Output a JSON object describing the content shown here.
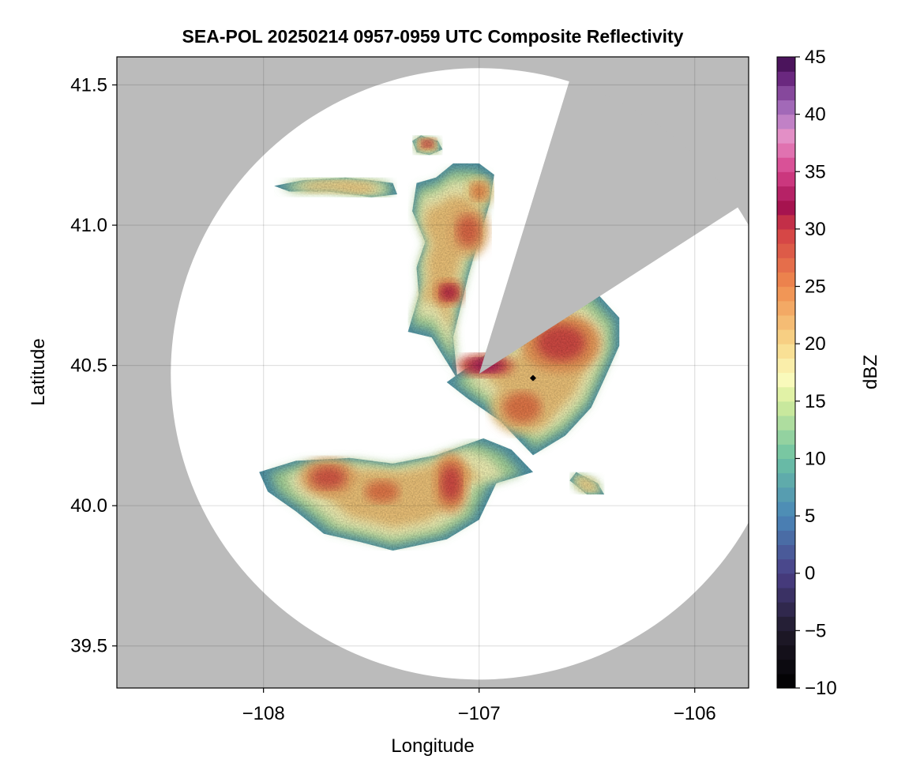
{
  "chart_data": {
    "type": "heatmap",
    "title": "SEA-POL 20250214 0957-0959 UTC Composite Reflectivity",
    "xlabel": "Longitude",
    "ylabel": "Latitude",
    "xlim": [
      -108.68,
      -105.75
    ],
    "ylim": [
      39.35,
      41.6
    ],
    "xticks": [
      -108,
      -107,
      -106
    ],
    "xtick_labels": [
      "−108",
      "−107",
      "−106"
    ],
    "yticks": [
      39.5,
      40.0,
      40.5,
      41.0,
      41.5
    ],
    "ytick_labels": [
      "39.5",
      "40.0",
      "40.5",
      "41.0",
      "41.5"
    ],
    "grid": true,
    "background_color": "#bbbbbb",
    "radar_coverage": {
      "center": [
        -107.0,
        40.47
      ],
      "range_lat_deg": 1.09,
      "range_lon_deg": 1.43,
      "blocked_sectors_deg_from_north": [
        [
          17,
          57
        ]
      ],
      "coverage_color": "#ffffff"
    },
    "instrument_location": [
      -106.75,
      40.455
    ],
    "colorbar": {
      "label": "dBZ",
      "min": -10,
      "max": 45,
      "step": 1.25,
      "ticks": [
        -10,
        -5,
        0,
        5,
        10,
        15,
        20,
        25,
        30,
        35,
        40,
        45
      ],
      "tick_labels": [
        "−10",
        "−5",
        "0",
        "5",
        "10",
        "15",
        "20",
        "25",
        "30",
        "35",
        "40",
        "45"
      ],
      "colormap": "spectral-reversed with pink-purple top",
      "stops": [
        [
          -10,
          "#000000"
        ],
        [
          -5,
          "#201a2a"
        ],
        [
          0,
          "#4a3f86"
        ],
        [
          5,
          "#4a87b8"
        ],
        [
          10,
          "#6cc1a3"
        ],
        [
          15,
          "#d5ee9c"
        ],
        [
          17,
          "#fbfbbd"
        ],
        [
          20,
          "#f8d98a"
        ],
        [
          25,
          "#f08c4e"
        ],
        [
          30,
          "#d23d45"
        ],
        [
          32,
          "#a31050"
        ],
        [
          35,
          "#d6418a"
        ],
        [
          38,
          "#e690c6"
        ],
        [
          40,
          "#b07ac6"
        ],
        [
          43,
          "#6d2a82"
        ],
        [
          45,
          "#3b0a4a"
        ]
      ]
    },
    "echo_regions": [
      {
        "name": "northern band",
        "shape": [
          [
            -107.33,
            40.62
          ],
          [
            -107.22,
            40.6
          ],
          [
            -107.1,
            40.45
          ],
          [
            -107.12,
            40.6
          ],
          [
            -107.05,
            40.82
          ],
          [
            -106.95,
            41.08
          ],
          [
            -106.93,
            41.18
          ],
          [
            -107.0,
            41.22
          ],
          [
            -107.12,
            41.22
          ],
          [
            -107.2,
            41.17
          ],
          [
            -107.29,
            41.15
          ],
          [
            -107.31,
            41.05
          ],
          [
            -107.25,
            40.94
          ],
          [
            -107.29,
            40.85
          ],
          [
            -107.28,
            40.75
          ]
        ],
        "cores": [
          {
            "center": [
              -107.14,
              40.76
            ],
            "radius": [
              0.05,
              0.035
            ],
            "dbz": 31
          },
          {
            "center": [
              -107.05,
              40.98
            ],
            "radius": [
              0.07,
              0.07
            ],
            "dbz": 27
          },
          {
            "center": [
              -107.0,
              41.12
            ],
            "radius": [
              0.05,
              0.04
            ],
            "dbz": 25
          }
        ]
      },
      {
        "name": "isolated cell north",
        "shape": [
          [
            -107.31,
            41.3
          ],
          [
            -107.27,
            41.32
          ],
          [
            -107.19,
            41.3
          ],
          [
            -107.17,
            41.27
          ],
          [
            -107.23,
            41.25
          ],
          [
            -107.29,
            41.26
          ]
        ],
        "cores": [
          {
            "center": [
              -107.24,
              41.29
            ],
            "radius": [
              0.03,
              0.015
            ],
            "dbz": 31
          }
        ]
      },
      {
        "name": "northwest patch",
        "shape": [
          [
            -107.95,
            41.14
          ],
          [
            -107.82,
            41.16
          ],
          [
            -107.62,
            41.17
          ],
          [
            -107.5,
            41.16
          ],
          [
            -107.4,
            41.15
          ],
          [
            -107.38,
            41.11
          ],
          [
            -107.5,
            41.1
          ],
          [
            -107.7,
            41.12
          ],
          [
            -107.88,
            41.12
          ]
        ],
        "cores": []
      },
      {
        "name": "main eastern cell",
        "shape": [
          [
            -107.15,
            40.44
          ],
          [
            -106.95,
            40.55
          ],
          [
            -106.78,
            40.64
          ],
          [
            -106.6,
            40.73
          ],
          [
            -106.48,
            40.78
          ],
          [
            -106.35,
            40.67
          ],
          [
            -106.35,
            40.57
          ],
          [
            -106.42,
            40.45
          ],
          [
            -106.48,
            40.35
          ],
          [
            -106.6,
            40.25
          ],
          [
            -106.75,
            40.18
          ],
          [
            -106.9,
            40.3
          ],
          [
            -107.05,
            40.38
          ]
        ],
        "cores": [
          {
            "center": [
              -106.62,
              40.58
            ],
            "radius": [
              0.14,
              0.08
            ],
            "dbz": 29
          },
          {
            "center": [
              -106.97,
              40.5
            ],
            "radius": [
              0.1,
              0.03
            ],
            "dbz": 33
          },
          {
            "center": [
              -106.8,
              40.35
            ],
            "radius": [
              0.11,
              0.07
            ],
            "dbz": 26
          }
        ]
      },
      {
        "name": "southwestern band",
        "shape": [
          [
            -108.02,
            40.12
          ],
          [
            -107.85,
            40.16
          ],
          [
            -107.6,
            40.17
          ],
          [
            -107.4,
            40.15
          ],
          [
            -107.2,
            40.18
          ],
          [
            -106.98,
            40.24
          ],
          [
            -106.85,
            40.2
          ],
          [
            -106.75,
            40.12
          ],
          [
            -106.92,
            40.08
          ],
          [
            -107.0,
            39.95
          ],
          [
            -107.15,
            39.88
          ],
          [
            -107.4,
            39.84
          ],
          [
            -107.55,
            39.87
          ],
          [
            -107.72,
            39.9
          ],
          [
            -107.85,
            39.98
          ],
          [
            -107.98,
            40.05
          ]
        ],
        "cores": [
          {
            "center": [
              -107.7,
              40.1
            ],
            "radius": [
              0.1,
              0.05
            ],
            "dbz": 28
          },
          {
            "center": [
              -107.45,
              40.05
            ],
            "radius": [
              0.1,
              0.05
            ],
            "dbz": 26
          },
          {
            "center": [
              -107.13,
              40.08
            ],
            "radius": [
              0.06,
              0.08
            ],
            "dbz": 29
          }
        ]
      },
      {
        "name": "east small patch",
        "shape": [
          [
            -106.55,
            40.12
          ],
          [
            -106.45,
            40.08
          ],
          [
            -106.42,
            40.04
          ],
          [
            -106.5,
            40.04
          ],
          [
            -106.58,
            40.09
          ]
        ],
        "cores": []
      }
    ]
  }
}
